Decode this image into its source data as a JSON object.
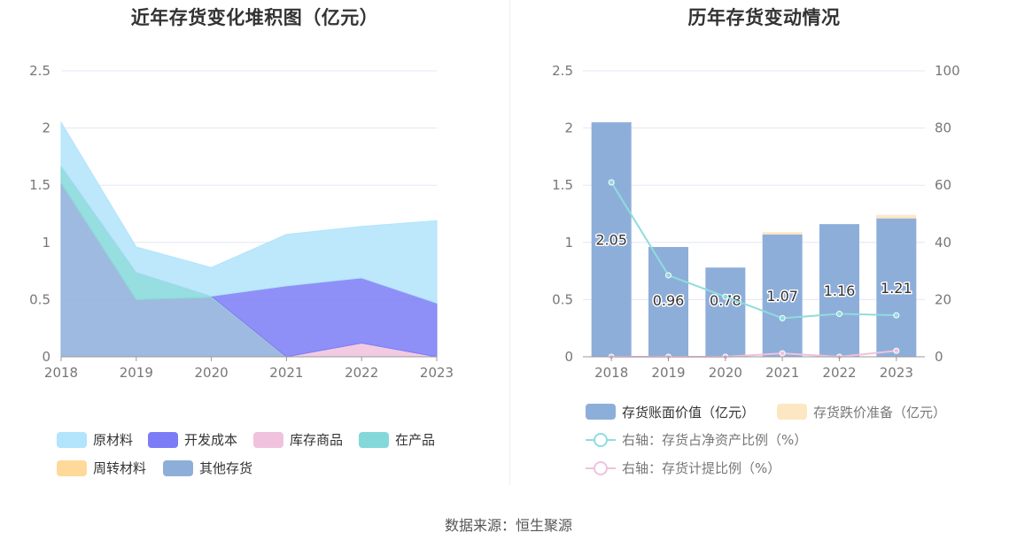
{
  "source": "数据来源：恒生聚源",
  "chart_data": [
    {
      "type": "area",
      "stacked": true,
      "title": "近年存货变化堆积图（亿元）",
      "categories": [
        "2018",
        "2019",
        "2020",
        "2021",
        "2022",
        "2023"
      ],
      "ylim": [
        0,
        2.5
      ],
      "y_ticks": [
        "0",
        "0.5",
        "1",
        "1.5",
        "2",
        "2.5"
      ],
      "grid": true,
      "legend_position": "bottom",
      "series": [
        {
          "name": "原材料",
          "color": "#b2e4fb",
          "values": [
            0.38,
            0.22,
            0.25,
            0.45,
            0.45,
            0.72
          ]
        },
        {
          "name": "开发成本",
          "color": "#7b7cf6",
          "values": [
            0,
            0,
            0,
            0.62,
            0.57,
            0.47
          ]
        },
        {
          "name": "库存商品",
          "color": "#f0c2dd",
          "values": [
            0,
            0,
            0,
            0,
            0.12,
            0
          ]
        },
        {
          "name": "在产品",
          "color": "#84d8da",
          "values": [
            0.15,
            0.24,
            0.01,
            0,
            0,
            0
          ]
        },
        {
          "name": "周转材料",
          "color": "#ffd99a",
          "values": [
            0,
            0,
            0,
            0,
            0,
            0
          ]
        },
        {
          "name": "其他存货",
          "color": "#8eaeda",
          "values": [
            1.52,
            0.5,
            0.52,
            0,
            0,
            0
          ]
        }
      ]
    },
    {
      "type": "bar",
      "title": "历年存货变动情况",
      "categories": [
        "2018",
        "2019",
        "2020",
        "2021",
        "2022",
        "2023"
      ],
      "ylim": [
        0,
        2.5
      ],
      "y_ticks": [
        "0",
        "0.5",
        "1",
        "1.5",
        "2",
        "2.5"
      ],
      "y2lim": [
        0,
        100
      ],
      "y2_ticks": [
        "0",
        "20",
        "40",
        "60",
        "80",
        "100"
      ],
      "grid": true,
      "legend_position": "bottom",
      "series": [
        {
          "name": "存货账面价值（亿元）",
          "kind": "bar",
          "color": "#8eaeda",
          "values": [
            2.05,
            0.96,
            0.78,
            1.07,
            1.16,
            1.21
          ],
          "labels": [
            "2.05",
            "0.96",
            "0.78",
            "1.07",
            "1.16",
            "1.21"
          ]
        },
        {
          "name": "存货跌价准备（亿元）",
          "kind": "bar",
          "color": "#fde7c2",
          "values": [
            0,
            0,
            0,
            0.02,
            0,
            0.03
          ]
        },
        {
          "name": "右轴：存货占净资产比例（%）",
          "kind": "line",
          "axis": "right",
          "color": "#8fdcdc",
          "values": [
            61,
            28.5,
            21,
            13.5,
            15,
            14.5
          ]
        },
        {
          "name": "右轴：存货计提比例（%）",
          "kind": "line",
          "axis": "right",
          "color": "#f0c2dd",
          "values": [
            0,
            0,
            0,
            1.2,
            0,
            2.1
          ]
        }
      ]
    }
  ]
}
